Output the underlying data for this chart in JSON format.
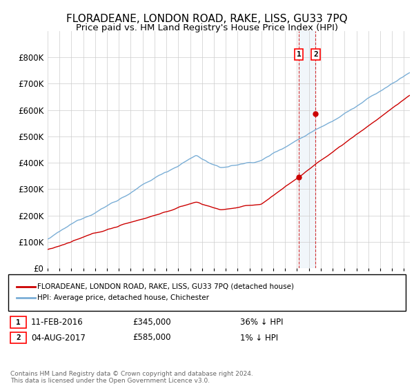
{
  "title": "FLORADEANE, LONDON ROAD, RAKE, LISS, GU33 7PQ",
  "subtitle": "Price paid vs. HM Land Registry's House Price Index (HPI)",
  "ylim": [
    0,
    900000
  ],
  "yticks": [
    0,
    100000,
    200000,
    300000,
    400000,
    500000,
    600000,
    700000,
    800000
  ],
  "ytick_labels": [
    "£0",
    "£100K",
    "£200K",
    "£300K",
    "£400K",
    "£500K",
    "£600K",
    "£700K",
    "£800K"
  ],
  "hpi_color": "#7aaed6",
  "price_color": "#cc0000",
  "transaction1_year": 2016.1,
  "transaction1_price": 345000,
  "transaction2_year": 2017.6,
  "transaction2_price": 585000,
  "legend_label_red": "FLORADEANE, LONDON ROAD, RAKE, LISS, GU33 7PQ (detached house)",
  "legend_label_blue": "HPI: Average price, detached house, Chichester",
  "annotation1_date": "11-FEB-2016",
  "annotation1_price": "£345,000",
  "annotation1_hpi": "36% ↓ HPI",
  "annotation2_date": "04-AUG-2017",
  "annotation2_price": "£585,000",
  "annotation2_hpi": "1% ↓ HPI",
  "footer": "Contains HM Land Registry data © Crown copyright and database right 2024.\nThis data is licensed under the Open Government Licence v3.0.",
  "background_color": "#ffffff",
  "grid_color": "#cccccc",
  "xlim_start": 1995,
  "xlim_end": 2025.5
}
